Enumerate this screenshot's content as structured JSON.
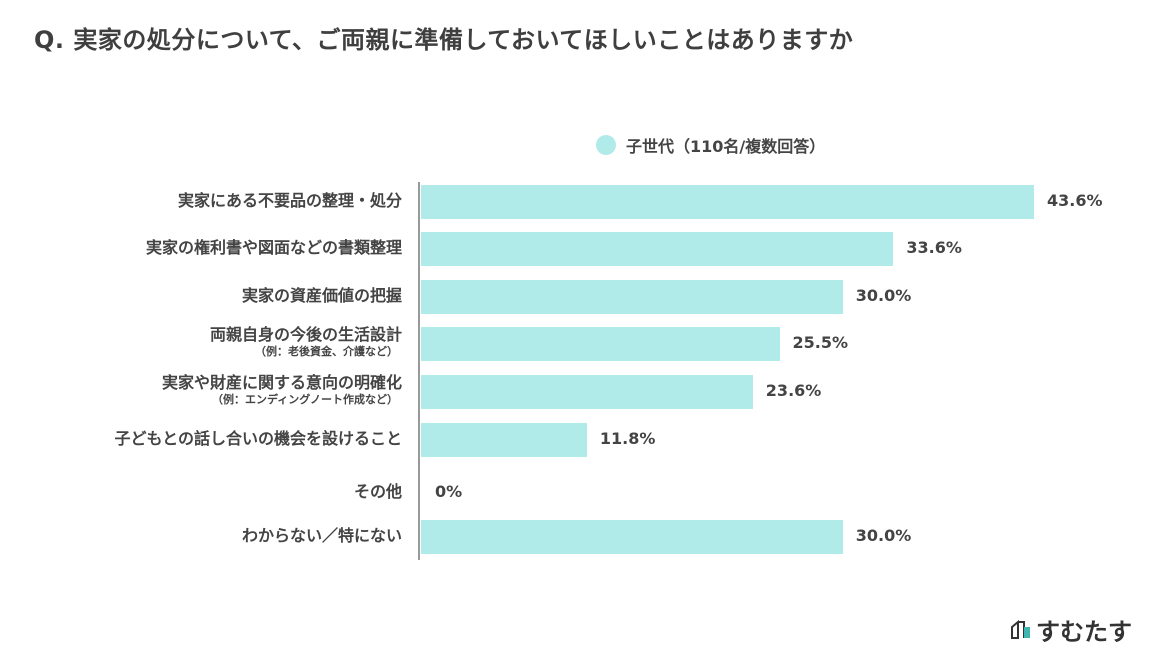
{
  "chart_data": {
    "type": "bar",
    "orientation": "horizontal",
    "title": "Q. 実家の処分について、ご両親に準備しておいてほしいことはありますか",
    "legend": {
      "position": "top",
      "entries": [
        "子世代（110名/複数回答）"
      ]
    },
    "series": [
      {
        "name": "子世代（110名/複数回答）",
        "color": "#b0ebea"
      }
    ],
    "categories": [
      {
        "label": "実家にある不要品の整理・処分",
        "sub": ""
      },
      {
        "label": "実家の権利書や図面などの書類整理",
        "sub": ""
      },
      {
        "label": "実家の資産価値の把握",
        "sub": ""
      },
      {
        "label": "両親自身の今後の生活設計",
        "sub": "（例：老後資金、介護など）"
      },
      {
        "label": "実家や財産に関する意向の明確化",
        "sub": "（例：エンディングノート作成など）"
      },
      {
        "label": "子どもとの話し合いの機会を設けること",
        "sub": ""
      },
      {
        "label": "その他",
        "sub": ""
      },
      {
        "label": "わからない／特にない",
        "sub": ""
      }
    ],
    "values": [
      43.6,
      33.6,
      30.0,
      25.5,
      23.6,
      11.8,
      0,
      30.0
    ],
    "value_labels": [
      "43.6%",
      "33.6%",
      "30.0%",
      "25.5%",
      "23.6%",
      "11.8%",
      "0%",
      "30.0%"
    ],
    "grid": false
  },
  "brand": {
    "name": "すむたす",
    "icon": "house-logo-icon"
  }
}
